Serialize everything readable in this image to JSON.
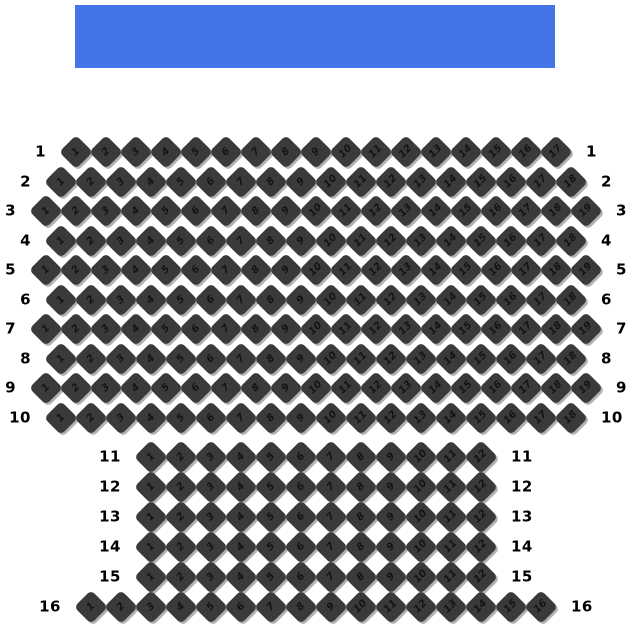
{
  "stage": {
    "name": "stage",
    "color": "#4574e8"
  },
  "seat_style": {
    "fill": "#3a3a3a",
    "shadow": "#b2b2b2",
    "number_color": "#141414"
  },
  "rows": [
    {
      "row_label": "1",
      "seats": [
        "1",
        "2",
        "3",
        "4",
        "5",
        "6",
        "7",
        "8",
        "9",
        "10",
        "11",
        "12",
        "13",
        "14",
        "15",
        "16",
        "17"
      ]
    },
    {
      "row_label": "2",
      "seats": [
        "1",
        "2",
        "3",
        "4",
        "5",
        "6",
        "7",
        "8",
        "9",
        "10",
        "11",
        "12",
        "13",
        "14",
        "15",
        "16",
        "17",
        "18"
      ]
    },
    {
      "row_label": "3",
      "seats": [
        "1",
        "2",
        "3",
        "4",
        "5",
        "6",
        "7",
        "8",
        "9",
        "10",
        "11",
        "12",
        "13",
        "14",
        "15",
        "16",
        "17",
        "18",
        "19"
      ]
    },
    {
      "row_label": "4",
      "seats": [
        "1",
        "2",
        "3",
        "4",
        "5",
        "6",
        "7",
        "8",
        "9",
        "10",
        "11",
        "12",
        "13",
        "14",
        "15",
        "16",
        "17",
        "18"
      ]
    },
    {
      "row_label": "5",
      "seats": [
        "1",
        "2",
        "3",
        "4",
        "5",
        "6",
        "7",
        "8",
        "9",
        "10",
        "11",
        "12",
        "13",
        "14",
        "15",
        "16",
        "17",
        "18",
        "19"
      ]
    },
    {
      "row_label": "6",
      "seats": [
        "1",
        "2",
        "3",
        "4",
        "5",
        "6",
        "7",
        "8",
        "9",
        "10",
        "11",
        "12",
        "13",
        "14",
        "15",
        "16",
        "17",
        "18"
      ]
    },
    {
      "row_label": "7",
      "seats": [
        "1",
        "2",
        "3",
        "4",
        "5",
        "6",
        "7",
        "8",
        "9",
        "10",
        "11",
        "12",
        "13",
        "14",
        "15",
        "16",
        "17",
        "18",
        "19"
      ]
    },
    {
      "row_label": "8",
      "seats": [
        "1",
        "2",
        "3",
        "4",
        "5",
        "6",
        "7",
        "8",
        "9",
        "10",
        "11",
        "12",
        "13",
        "14",
        "15",
        "16",
        "17",
        "18"
      ]
    },
    {
      "row_label": "9",
      "seats": [
        "1",
        "2",
        "3",
        "4",
        "5",
        "6",
        "7",
        "8",
        "9",
        "10",
        "11",
        "12",
        "13",
        "14",
        "15",
        "16",
        "17",
        "18",
        "19"
      ]
    },
    {
      "row_label": "10",
      "seats": [
        "1",
        "2",
        "3",
        "4",
        "5",
        "6",
        "7",
        "8",
        "9",
        "10",
        "11",
        "12",
        "13",
        "14",
        "15",
        "16",
        "17",
        "18"
      ]
    },
    {
      "row_label": "11",
      "seats": [
        "1",
        "2",
        "3",
        "4",
        "5",
        "6",
        "7",
        "8",
        "9",
        "10",
        "11",
        "12"
      ]
    },
    {
      "row_label": "12",
      "seats": [
        "1",
        "2",
        "3",
        "4",
        "5",
        "6",
        "7",
        "8",
        "9",
        "10",
        "11",
        "12"
      ]
    },
    {
      "row_label": "13",
      "seats": [
        "1",
        "2",
        "3",
        "4",
        "5",
        "6",
        "7",
        "8",
        "9",
        "10",
        "11",
        "12"
      ]
    },
    {
      "row_label": "14",
      "seats": [
        "1",
        "2",
        "3",
        "4",
        "5",
        "6",
        "7",
        "8",
        "9",
        "10",
        "11",
        "12"
      ]
    },
    {
      "row_label": "15",
      "seats": [
        "1",
        "2",
        "3",
        "4",
        "5",
        "6",
        "7",
        "8",
        "9",
        "10",
        "11",
        "12"
      ]
    },
    {
      "row_label": "16",
      "seats": [
        "1",
        "2",
        "3",
        "4",
        "5",
        "6",
        "7",
        "8",
        "9",
        "10",
        "11",
        "12",
        "13",
        "14",
        "15",
        "16"
      ]
    }
  ]
}
